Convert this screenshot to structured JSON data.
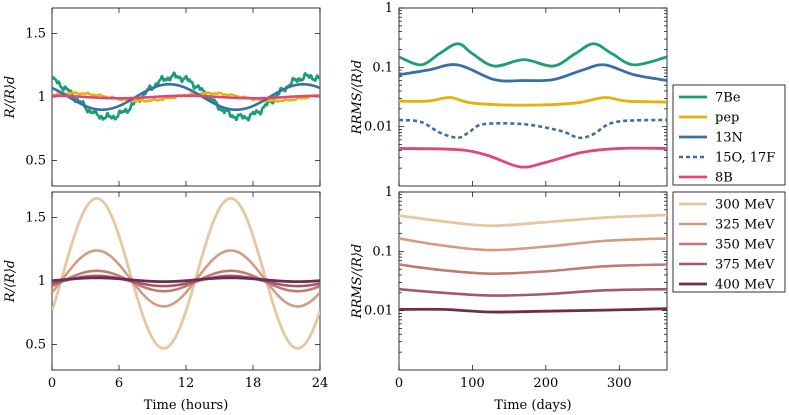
{
  "chart_data": [
    {
      "id": "tl",
      "type": "line",
      "position": "top-left",
      "yscale": "linear",
      "xlim": [
        0,
        24
      ],
      "ylim": [
        0.3,
        1.7
      ],
      "yticks": [
        0.5,
        1,
        1.5
      ],
      "ytick_labels": [
        "0.5",
        "1",
        "1.5"
      ],
      "ylabel": "R/⟨R⟩d",
      "series": [
        {
          "name": "7Be",
          "color": "#1b9e77",
          "mean": 1.0,
          "amp": 0.16,
          "period": 12,
          "phase": -1.0,
          "noise": 0.035,
          "width": 2.6
        },
        {
          "name": "pep",
          "color": "#e6b10a",
          "mean": 1.0,
          "amp": 0.03,
          "period": 12,
          "phase": 2.0,
          "noise": 0.01,
          "width": 2.4
        },
        {
          "name": "13N",
          "color": "#3a6ea5",
          "mean": 1.0,
          "amp": 0.1,
          "period": 12,
          "phase": -1.5,
          "noise": 0.0,
          "width": 2.6
        },
        {
          "name": "8B",
          "color": "#e0457b",
          "mean": 1.0,
          "amp": 0.01,
          "period": 12,
          "phase": 0.0,
          "noise": 0.0,
          "width": 2.6
        }
      ]
    },
    {
      "id": "bl",
      "type": "line",
      "position": "bottom-left",
      "yscale": "linear",
      "xlim": [
        0,
        24
      ],
      "ylim": [
        0.3,
        1.7
      ],
      "yticks": [
        0.5,
        1,
        1.5
      ],
      "ytick_labels": [
        "0.5",
        "1",
        "1.5"
      ],
      "xticks": [
        0,
        6,
        12,
        18,
        24
      ],
      "xtick_labels": [
        "0",
        "6",
        "12",
        "18",
        "24"
      ],
      "xlabel": "Time (hours)",
      "ylabel": "R/⟨R⟩d",
      "series": [
        {
          "name": "300 MeV",
          "color": "#e6c7a3",
          "mean": 1.06,
          "amp": 0.59,
          "period": 12,
          "phase": 4.0,
          "width": 2.8
        },
        {
          "name": "325 MeV",
          "color": "#d49a82",
          "mean": 1.02,
          "amp": 0.22,
          "period": 12,
          "phase": 4.0,
          "width": 2.6
        },
        {
          "name": "350 MeV",
          "color": "#c07a72",
          "mean": 1.0,
          "amp": 0.08,
          "period": 12,
          "phase": 4.0,
          "width": 2.6
        },
        {
          "name": "375 MeV",
          "color": "#a15a6d",
          "mean": 1.0,
          "amp": 0.04,
          "period": 12,
          "phase": 4.0,
          "width": 2.6
        },
        {
          "name": "400 MeV",
          "color": "#6e2d4f",
          "mean": 1.01,
          "amp": 0.015,
          "period": 12,
          "phase": 4.0,
          "width": 2.8
        }
      ]
    },
    {
      "id": "tr",
      "type": "line",
      "position": "top-right",
      "yscale": "log",
      "xlim": [
        0,
        365
      ],
      "ylim": [
        0.001,
        1
      ],
      "yticks": [
        0.01,
        0.1,
        1
      ],
      "ytick_labels": [
        "0.01",
        "0.1",
        "1"
      ],
      "ylabel": "RRMS/⟨R⟩d",
      "legend": "right",
      "series": [
        {
          "name": "7Be",
          "label": "7Be",
          "color": "#1b9e77",
          "width": 2.8,
          "dash": "",
          "points": [
            [
              0,
              0.15
            ],
            [
              30,
              0.11
            ],
            [
              55,
              0.17
            ],
            [
              80,
              0.25
            ],
            [
              100,
              0.17
            ],
            [
              130,
              0.105
            ],
            [
              170,
              0.135
            ],
            [
              210,
              0.105
            ],
            [
              240,
              0.17
            ],
            [
              265,
              0.25
            ],
            [
              290,
              0.17
            ],
            [
              320,
              0.11
            ],
            [
              365,
              0.15
            ]
          ]
        },
        {
          "name": "pep",
          "label": "pep",
          "color": "#e6b10a",
          "width": 2.8,
          "dash": "",
          "points": [
            [
              0,
              0.027
            ],
            [
              40,
              0.027
            ],
            [
              70,
              0.031
            ],
            [
              100,
              0.025
            ],
            [
              170,
              0.023
            ],
            [
              240,
              0.025
            ],
            [
              280,
              0.031
            ],
            [
              310,
              0.027
            ],
            [
              365,
              0.026
            ]
          ]
        },
        {
          "name": "13N",
          "label": "13N",
          "color": "#3a6ea5",
          "width": 2.8,
          "dash": "",
          "points": [
            [
              0,
              0.075
            ],
            [
              40,
              0.09
            ],
            [
              80,
              0.11
            ],
            [
              130,
              0.062
            ],
            [
              170,
              0.06
            ],
            [
              210,
              0.062
            ],
            [
              250,
              0.09
            ],
            [
              280,
              0.11
            ],
            [
              320,
              0.075
            ],
            [
              365,
              0.06
            ]
          ]
        },
        {
          "name": "15O, 17F",
          "label": "15O, 17F",
          "color": "#3a6ea5",
          "width": 2.6,
          "dash": "4,3",
          "points": [
            [
              0,
              0.013
            ],
            [
              30,
              0.012
            ],
            [
              55,
              0.008
            ],
            [
              80,
              0.0065
            ],
            [
              95,
              0.008
            ],
            [
              115,
              0.011
            ],
            [
              170,
              0.011
            ],
            [
              220,
              0.0085
            ],
            [
              245,
              0.0065
            ],
            [
              265,
              0.0075
            ],
            [
              295,
              0.012
            ],
            [
              365,
              0.013
            ]
          ]
        },
        {
          "name": "8B",
          "label": "8B",
          "color": "#e0457b",
          "width": 2.8,
          "dash": "",
          "points": [
            [
              0,
              0.0043
            ],
            [
              80,
              0.0041
            ],
            [
              120,
              0.0033
            ],
            [
              165,
              0.0021
            ],
            [
              200,
              0.0025
            ],
            [
              250,
              0.0037
            ],
            [
              300,
              0.0043
            ],
            [
              365,
              0.0043
            ]
          ]
        }
      ]
    },
    {
      "id": "br",
      "type": "line",
      "position": "bottom-right",
      "yscale": "log",
      "xlim": [
        0,
        365
      ],
      "ylim": [
        0.001,
        1
      ],
      "yticks": [
        0.01,
        0.1,
        1
      ],
      "ytick_labels": [
        "0.01",
        "0.1",
        "1"
      ],
      "xticks": [
        0,
        100,
        200,
        300
      ],
      "xtick_labels": [
        "0",
        "100",
        "200",
        "300"
      ],
      "xlabel": "Time (days)",
      "ylabel": "RRMS/⟨R⟩d",
      "legend": "right",
      "series": [
        {
          "name": "300 MeV",
          "label": "300 MeV",
          "color": "#e6c7a3",
          "width": 2.8,
          "dash": "",
          "points": [
            [
              0,
              0.4
            ],
            [
              60,
              0.32
            ],
            [
              125,
              0.27
            ],
            [
              200,
              0.31
            ],
            [
              280,
              0.37
            ],
            [
              365,
              0.41
            ]
          ]
        },
        {
          "name": "325 MeV",
          "label": "325 MeV",
          "color": "#d49a82",
          "width": 2.6,
          "dash": "",
          "points": [
            [
              0,
              0.165
            ],
            [
              60,
              0.125
            ],
            [
              125,
              0.105
            ],
            [
              200,
              0.12
            ],
            [
              280,
              0.15
            ],
            [
              365,
              0.165
            ]
          ]
        },
        {
          "name": "350 MeV",
          "label": "350 MeV",
          "color": "#c07a72",
          "width": 2.6,
          "dash": "",
          "points": [
            [
              0,
              0.06
            ],
            [
              60,
              0.048
            ],
            [
              125,
              0.042
            ],
            [
              200,
              0.046
            ],
            [
              280,
              0.056
            ],
            [
              365,
              0.06
            ]
          ]
        },
        {
          "name": "375 MeV",
          "label": "375 MeV",
          "color": "#a15a6d",
          "width": 2.6,
          "dash": "",
          "points": [
            [
              0,
              0.023
            ],
            [
              60,
              0.02
            ],
            [
              125,
              0.018
            ],
            [
              200,
              0.019
            ],
            [
              280,
              0.022
            ],
            [
              365,
              0.023
            ]
          ]
        },
        {
          "name": "400 MeV",
          "label": "400 MeV",
          "color": "#6e2d4f",
          "width": 2.8,
          "dash": "",
          "points": [
            [
              0,
              0.0105
            ],
            [
              60,
              0.0105
            ],
            [
              125,
              0.0095
            ],
            [
              200,
              0.0098
            ],
            [
              280,
              0.0102
            ],
            [
              365,
              0.0108
            ]
          ]
        }
      ]
    }
  ],
  "axis_labels": {
    "hours": "Time (hours)",
    "days": "Time (days)"
  }
}
